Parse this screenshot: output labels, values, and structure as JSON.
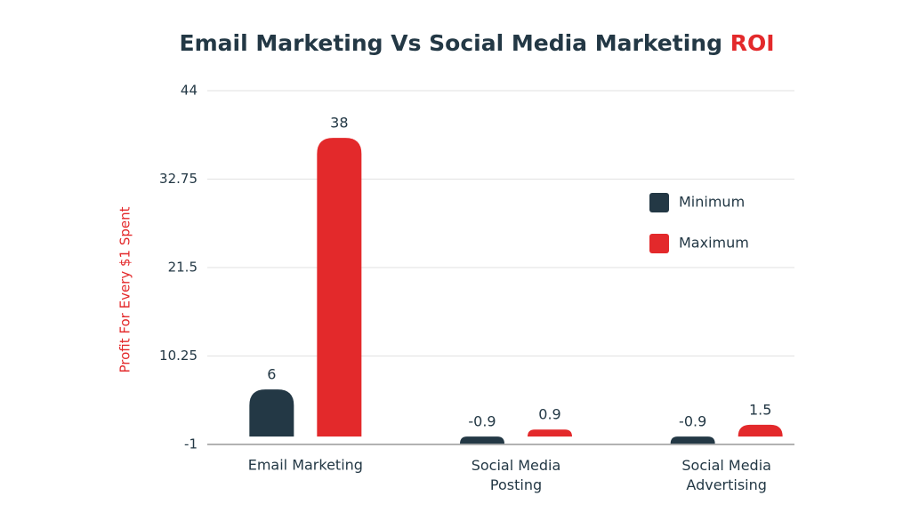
{
  "chart_data": {
    "type": "bar",
    "title": "Email Marketing Vs Social Media Marketing",
    "title_highlight": "ROI",
    "y_label": "Profit For Every $1 Spent",
    "categories": [
      "Email Marketing",
      "Social Media Posting",
      "Social Media Advertising"
    ],
    "series": [
      {
        "name": "Minimum",
        "color": "#233845",
        "values": [
          6,
          -0.9,
          -0.9
        ]
      },
      {
        "name": "Maximum",
        "color": "#e3292b",
        "values": [
          38,
          0.9,
          1.5
        ]
      }
    ],
    "ylim": [
      -1,
      44
    ],
    "yticks": [
      -1,
      10.25,
      21.5,
      32.75,
      44
    ],
    "grid": true,
    "legend": "right"
  }
}
